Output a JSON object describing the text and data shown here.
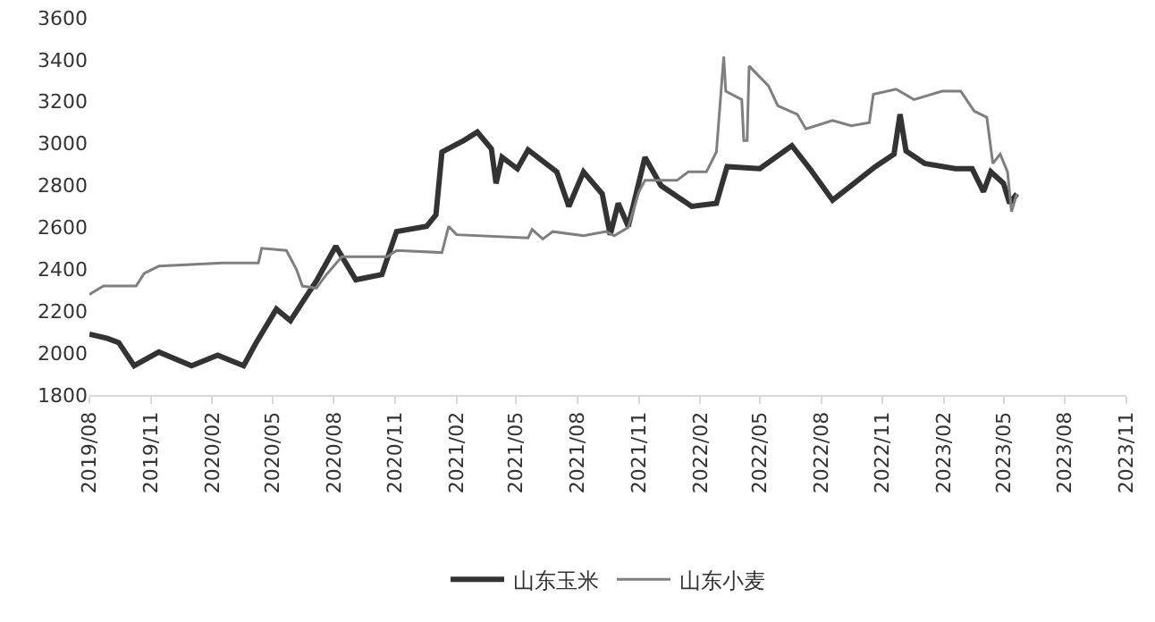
{
  "chart_data": {
    "type": "line",
    "xlim": [
      "2019-08-01",
      "2023-11-01"
    ],
    "xticks": [
      {
        "value": "2019-08-01",
        "label": "2019/08"
      },
      {
        "value": "2019-11-01",
        "label": "2019/11"
      },
      {
        "value": "2020-02-01",
        "label": "2020/02"
      },
      {
        "value": "2020-05-01",
        "label": "2020/05"
      },
      {
        "value": "2020-08-01",
        "label": "2020/08"
      },
      {
        "value": "2020-11-01",
        "label": "2020/11"
      },
      {
        "value": "2021-02-01",
        "label": "2021/02"
      },
      {
        "value": "2021-05-01",
        "label": "2021/05"
      },
      {
        "value": "2021-08-01",
        "label": "2021/08"
      },
      {
        "value": "2021-11-01",
        "label": "2021/11"
      },
      {
        "value": "2022-02-01",
        "label": "2022/02"
      },
      {
        "value": "2022-05-01",
        "label": "2022/05"
      },
      {
        "value": "2022-08-01",
        "label": "2022/08"
      },
      {
        "value": "2022-11-01",
        "label": "2022/11"
      },
      {
        "value": "2023-02-01",
        "label": "2023/02"
      },
      {
        "value": "2023-05-01",
        "label": "2023/05"
      },
      {
        "value": "2023-08-01",
        "label": "2023/08"
      },
      {
        "value": "2023-11-01",
        "label": "2023/11"
      }
    ],
    "ylim": [
      1800,
      3600
    ],
    "yticks": [
      1800,
      2000,
      2200,
      2400,
      2600,
      2800,
      3000,
      3200,
      3400,
      3600
    ],
    "grid": false,
    "legend": "bottom",
    "marker": "none",
    "line_style": "solid",
    "series": [
      {
        "name": "山东玉米",
        "color": "#333333",
        "x": [
          "2019-08-01",
          "2019-08-28",
          "2019-09-14",
          "2019-10-07",
          "2019-11-13",
          "2020-01-01",
          "2020-02-09",
          "2020-03-19",
          "2020-04-06",
          "2020-05-07",
          "2020-05-28",
          "2020-07-07",
          "2020-08-04",
          "2020-09-03",
          "2020-10-12",
          "2020-11-03",
          "2020-12-18",
          "2021-01-01",
          "2021-01-10",
          "2021-02-12",
          "2021-03-04",
          "2021-03-25",
          "2021-04-01",
          "2021-04-10",
          "2021-05-03",
          "2021-05-19",
          "2021-07-01",
          "2021-07-19",
          "2021-08-10",
          "2021-09-07",
          "2021-09-19",
          "2021-10-01",
          "2021-10-16",
          "2021-11-10",
          "2021-12-04",
          "2022-01-19",
          "2022-02-25",
          "2022-03-13",
          "2022-05-01",
          "2022-06-18",
          "2022-07-15",
          "2022-08-18",
          "2022-09-15",
          "2022-10-21",
          "2022-11-18",
          "2022-11-27",
          "2022-12-06",
          "2023-01-03",
          "2023-02-18",
          "2023-03-15",
          "2023-04-01",
          "2023-04-12",
          "2023-05-01",
          "2023-05-10",
          "2023-05-21"
        ],
        "values": [
          2090,
          2070,
          2050,
          1940,
          2005,
          1940,
          1990,
          1940,
          2045,
          2210,
          2155,
          2350,
          2510,
          2350,
          2375,
          2580,
          2605,
          2660,
          2960,
          3015,
          3055,
          2975,
          2810,
          2935,
          2880,
          2970,
          2865,
          2700,
          2865,
          2760,
          2565,
          2715,
          2605,
          2935,
          2800,
          2700,
          2715,
          2890,
          2880,
          2990,
          2880,
          2730,
          2800,
          2890,
          2950,
          3140,
          2965,
          2905,
          2880,
          2880,
          2770,
          2865,
          2810,
          2715,
          2760
        ]
      },
      {
        "name": "山东小麦",
        "color": "#7f7f7f",
        "x": [
          "2019-08-01",
          "2019-08-22",
          "2019-10-10",
          "2019-10-22",
          "2019-11-13",
          "2020-02-16",
          "2020-04-10",
          "2020-04-15",
          "2020-05-22",
          "2020-06-06",
          "2020-06-15",
          "2020-07-06",
          "2020-07-21",
          "2020-08-13",
          "2020-10-20",
          "2020-11-03",
          "2021-01-10",
          "2021-01-20",
          "2021-02-01",
          "2021-05-19",
          "2021-05-25",
          "2021-06-10",
          "2021-06-25",
          "2021-08-10",
          "2021-09-13",
          "2021-09-25",
          "2021-10-16",
          "2021-11-01",
          "2021-11-10",
          "2021-12-28",
          "2022-01-14",
          "2022-02-10",
          "2022-02-25",
          "2022-03-08",
          "2022-03-11",
          "2022-04-04",
          "2022-04-07",
          "2022-04-12",
          "2022-04-15",
          "2022-05-14",
          "2022-05-28",
          "2022-06-26",
          "2022-07-09",
          "2022-08-18",
          "2022-09-15",
          "2022-10-12",
          "2022-10-18",
          "2022-11-21",
          "2022-12-18",
          "2023-01-29",
          "2023-02-26",
          "2023-03-18",
          "2023-04-06",
          "2023-04-15",
          "2023-04-26",
          "2023-05-07",
          "2023-05-13",
          "2023-05-21"
        ],
        "values": [
          2280,
          2320,
          2320,
          2380,
          2415,
          2430,
          2430,
          2500,
          2490,
          2400,
          2320,
          2310,
          2375,
          2460,
          2460,
          2490,
          2480,
          2605,
          2565,
          2550,
          2590,
          2545,
          2580,
          2560,
          2580,
          2560,
          2600,
          2770,
          2825,
          2825,
          2865,
          2865,
          2960,
          3415,
          3250,
          3210,
          3015,
          3015,
          3370,
          3275,
          3180,
          3140,
          3070,
          3110,
          3085,
          3100,
          3235,
          3260,
          3210,
          3250,
          3250,
          3155,
          3125,
          2905,
          2950,
          2865,
          2675,
          2760
        ]
      }
    ]
  }
}
